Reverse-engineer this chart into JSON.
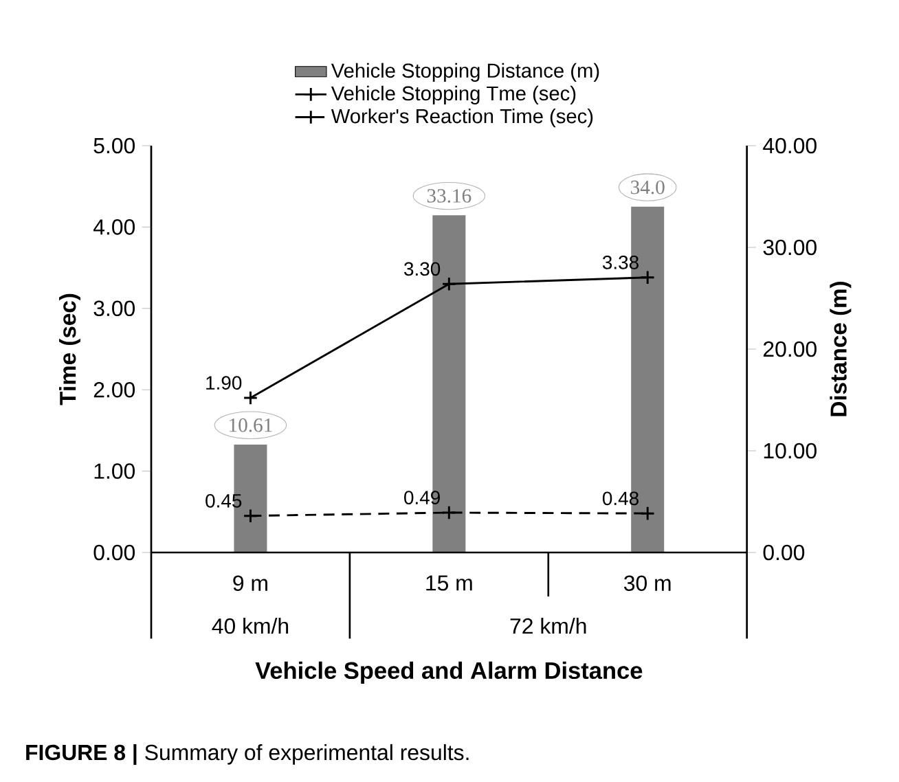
{
  "chart_data": {
    "type": "line",
    "categories": [
      "9 m",
      "15 m",
      "30 m"
    ],
    "xlabel": "Vehicle Speed and Alarm Distance",
    "ylabel": "Time (sec)",
    "y2label": "Distance (m)",
    "ylim": [
      0,
      5
    ],
    "yticks": [
      {
        "value": 0,
        "label": "0.00"
      },
      {
        "value": 1,
        "label": "1.00"
      },
      {
        "value": 2,
        "label": "2.00"
      },
      {
        "value": 3,
        "label": "3.00"
      },
      {
        "value": 4,
        "label": "4.00"
      },
      {
        "value": 5,
        "label": "5.00"
      }
    ],
    "y2lim": [
      0,
      40
    ],
    "y2ticks": [
      {
        "value": 0,
        "label": "0.00"
      },
      {
        "value": 10,
        "label": "10.00"
      },
      {
        "value": 20,
        "label": "20.00"
      },
      {
        "value": 30,
        "label": "30.00"
      },
      {
        "value": 40,
        "label": "40.00"
      }
    ],
    "legend": "top",
    "marker": "cross",
    "series": [
      {
        "name": "Vehicle Stopping Distance (m)",
        "type": "bar",
        "axis": "y2",
        "color": "#808080",
        "values": [
          10.61,
          33.16,
          34.0
        ],
        "value_labels": [
          "10.61",
          "33.16",
          "34.0"
        ]
      },
      {
        "name": "Vehicle Stopping Tme (sec)",
        "color": "#000000",
        "line_style": "solid",
        "values": [
          1.9,
          3.3,
          3.38
        ],
        "value_labels": [
          "1.90",
          "3.30",
          "3.38"
        ]
      },
      {
        "name": "Worker's Reaction Time (sec)",
        "color": "#000000",
        "line_style": "dashed",
        "values": [
          0.45,
          0.49,
          0.48
        ],
        "value_labels": [
          "0.45",
          "0.49",
          "0.48"
        ]
      }
    ],
    "annotations": [
      "40 km/h",
      "72 km/h",
      "**FIGURE 8 |** Summary of experimental results."
    ]
  }
}
